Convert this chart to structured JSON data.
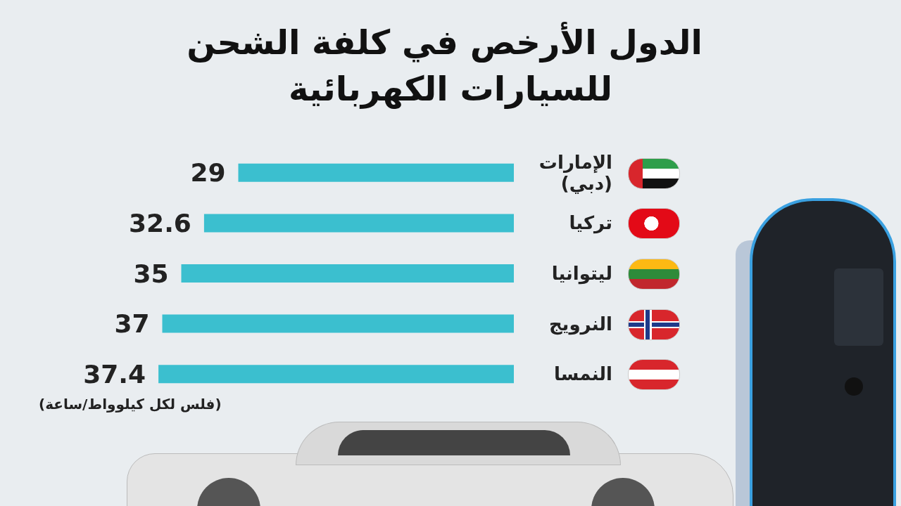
{
  "chart_data": {
    "type": "bar",
    "orientation": "horizontal",
    "title": "الدول الأرخص في كلفة الشحن للسيارات الكهربائية",
    "categories": [
      "الإمارات\n(دبي)",
      "تركيا",
      "ليتوانيا",
      "النرويج",
      "النمسا"
    ],
    "values": [
      29,
      32.6,
      35,
      37,
      37.4
    ],
    "color": "#3bbfcf",
    "data_labels": true,
    "annotations": [
      "(فلس لكل كيلوواط/ساعة)"
    ]
  }
}
